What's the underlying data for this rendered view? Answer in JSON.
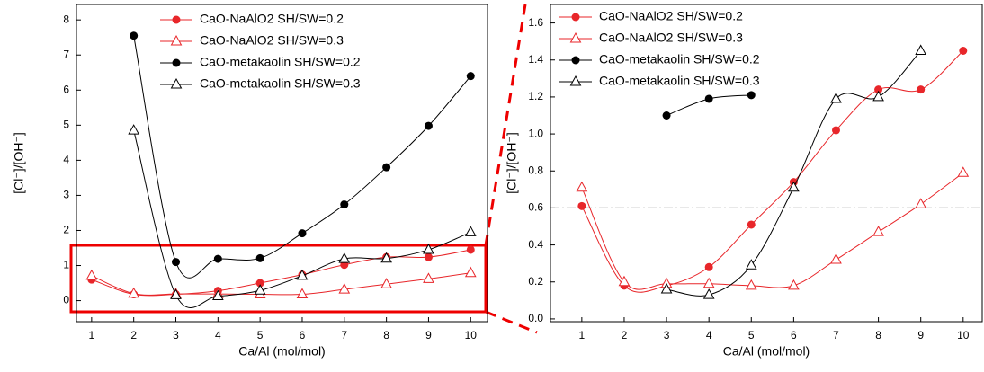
{
  "chart_data": [
    {
      "type": "line",
      "x_label": "Ca/Al (mol/mol)",
      "y_label": "[Cl⁻]/[OH⁻]",
      "x": [
        1,
        2,
        3,
        4,
        5,
        6,
        7,
        8,
        9,
        10
      ],
      "xlim": [
        0.64,
        10.4
      ],
      "ylim": [
        -0.6,
        8.44
      ],
      "xticks": [
        1,
        2,
        3,
        4,
        5,
        6,
        7,
        8,
        9,
        10
      ],
      "yticks": [
        0,
        1,
        2,
        3,
        4,
        5,
        6,
        7,
        8
      ],
      "series": [
        {
          "name": "CaO-NaAlO2 SH/SW=0.2",
          "color": "#e8262a",
          "marker": "circle",
          "values": [
            0.6,
            0.18,
            0.18,
            0.28,
            0.5,
            0.74,
            1.02,
            1.24,
            1.24,
            1.45
          ]
        },
        {
          "name": "CaO-NaAlO2 SH/SW=0.3",
          "color": "#e8262a",
          "marker": "triangle",
          "values": [
            0.71,
            0.2,
            0.19,
            0.19,
            0.18,
            0.18,
            0.32,
            0.47,
            0.62,
            0.79
          ]
        },
        {
          "name": "CaO-metakaolin SH/SW=0.2",
          "color": "#000000",
          "marker": "circle",
          "values": [
            null,
            7.55,
            1.1,
            1.19,
            1.21,
            1.92,
            2.74,
            3.8,
            4.98,
            6.4
          ]
        },
        {
          "name": "CaO-metakaolin SH/SW=0.3",
          "color": "#000000",
          "marker": "triangle",
          "values": [
            null,
            4.85,
            0.16,
            0.13,
            0.29,
            0.71,
            1.19,
            1.2,
            1.45,
            1.95
          ]
        }
      ]
    },
    {
      "type": "line",
      "x_label": "Ca/Al (mol/mol)",
      "y_label": "[Cl⁻]/[OH⁻]",
      "x": [
        1,
        2,
        3,
        4,
        5,
        6,
        7,
        8,
        9,
        10
      ],
      "xlim": [
        0.26,
        10.45
      ],
      "ylim": [
        -0.015,
        1.7
      ],
      "xticks": [
        1,
        2,
        3,
        4,
        5,
        6,
        7,
        8,
        9,
        10
      ],
      "yticks": [
        {
          "value": 0,
          "label": "0.0"
        },
        {
          "value": 0.2,
          "label": "0.2"
        },
        {
          "value": 0.4,
          "label": "0.4"
        },
        {
          "value": 0.6,
          "label": "0.6"
        },
        {
          "value": 0.8,
          "label": "0.8"
        },
        {
          "value": 1.0,
          "label": "1.0"
        },
        {
          "value": 1.2,
          "label": "1.2"
        },
        {
          "value": 1.4,
          "label": "1.4"
        },
        {
          "value": 1.6,
          "label": "1.6"
        }
      ],
      "reference_line": 0.6,
      "series": [
        {
          "name": "CaO-NaAlO2 SH/SW=0.2",
          "color": "#e8262a",
          "marker": "circle",
          "values": [
            0.61,
            0.18,
            0.18,
            0.28,
            0.51,
            0.74,
            1.02,
            1.24,
            1.24,
            1.45
          ]
        },
        {
          "name": "CaO-NaAlO2 SH/SW=0.3",
          "color": "#e8262a",
          "marker": "triangle",
          "values": [
            0.71,
            0.2,
            0.19,
            0.19,
            0.18,
            0.18,
            0.32,
            0.47,
            0.62,
            0.79
          ]
        },
        {
          "name": "CaO-metakaolin SH/SW=0.2",
          "color": "#000000",
          "marker": "circle",
          "values": [
            null,
            null,
            1.1,
            1.19,
            1.21,
            null,
            null,
            null,
            null,
            null
          ]
        },
        {
          "name": "CaO-metakaolin SH/SW=0.3",
          "color": "#000000",
          "marker": "triangle",
          "values": [
            null,
            null,
            0.16,
            0.13,
            0.29,
            0.71,
            1.19,
            1.2,
            1.45,
            null
          ]
        }
      ]
    }
  ]
}
